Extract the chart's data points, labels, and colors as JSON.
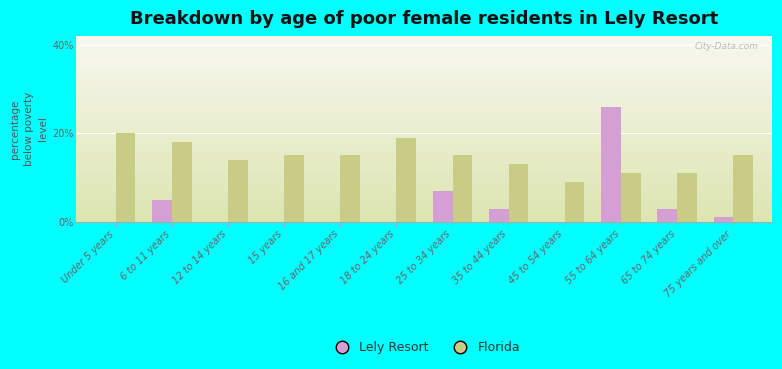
{
  "title": "Breakdown by age of poor female residents in Lely Resort",
  "ylabel": "percentage\nbelow poverty\nlevel",
  "categories": [
    "Under 5 years",
    "6 to 11 years",
    "12 to 14 years",
    "15 years",
    "16 and 17 years",
    "18 to 24 years",
    "25 to 34 years",
    "35 to 44 years",
    "45 to 54 years",
    "55 to 64 years",
    "65 to 74 years",
    "75 years and over"
  ],
  "lely_resort": [
    0,
    5,
    0,
    0,
    0,
    0,
    7,
    3,
    0,
    26,
    3,
    1
  ],
  "florida": [
    20,
    18,
    14,
    15,
    15,
    19,
    15,
    13,
    9,
    11,
    11,
    15
  ],
  "lely_color": "#d4a0d4",
  "florida_color": "#c8cc85",
  "background_color": "#00ffff",
  "plot_bg_top": "#f8f8f0",
  "plot_bg_bottom": "#dde5b0",
  "ylim": [
    0,
    42
  ],
  "yticks": [
    0,
    20,
    40
  ],
  "ytick_labels": [
    "0%",
    "20%",
    "40%"
  ],
  "title_fontsize": 13,
  "axis_label_fontsize": 7.5,
  "tick_fontsize": 7,
  "legend_fontsize": 9,
  "watermark": "City-Data.com"
}
